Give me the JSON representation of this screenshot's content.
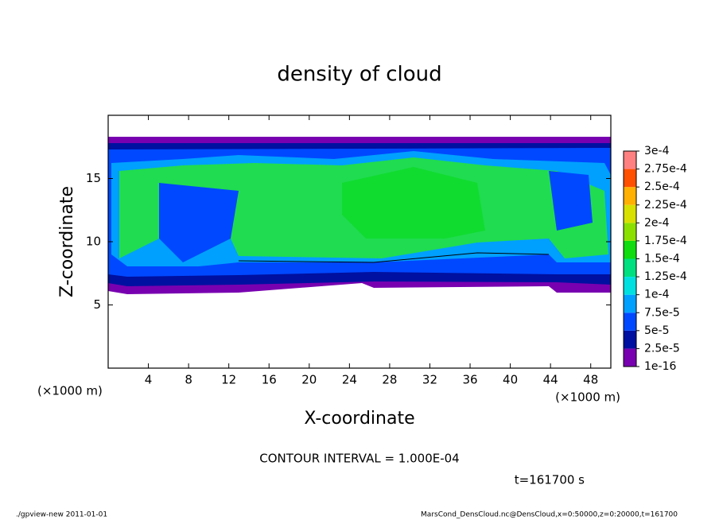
{
  "chart_data": {
    "type": "contour",
    "title": "density of cloud",
    "x_label": "X-coordinate",
    "y_label": "Z-coordinate",
    "x_unit": "(×1000 m)",
    "y_unit": "(×1000 m)",
    "xlim": [
      0,
      50
    ],
    "xticks": [
      4,
      8,
      12,
      16,
      20,
      24,
      28,
      32,
      36,
      40,
      44,
      48
    ],
    "ylim": [
      0,
      20
    ],
    "yticks": [
      5,
      10,
      15
    ],
    "colorbar_levels": [
      1e-16,
      {
        "value": 2.5e-05,
        "label": "2.5e-5"
      },
      {
        "value": 5e-05,
        "label": "5e-5"
      },
      {
        "value": 7.5e-05,
        "label": "7.5e-5"
      },
      {
        "value": 0.0001,
        "label": "1e-4"
      },
      {
        "value": 0.000125,
        "label": "1.25e-4"
      },
      {
        "value": 0.00015,
        "label": "1.5e-4"
      },
      {
        "value": 0.000175,
        "label": "1.75e-4"
      },
      {
        "value": 0.0002,
        "label": "2e-4"
      },
      {
        "value": 0.000225,
        "label": "2.25e-4"
      },
      {
        "value": 0.00025,
        "label": "2.5e-4"
      },
      {
        "value": 0.000275,
        "label": "2.75e-4"
      },
      {
        "value": 0.0003,
        "label": "3e-4"
      }
    ],
    "colorbar_colors": [
      "#7800b0",
      "#0010a0",
      "#0048ff",
      "#00a0ff",
      "#00e0e0",
      "#00e080",
      "#10dc10",
      "#8ce000",
      "#d8e000",
      "#ffb000",
      "#ff5000",
      "#ff8080"
    ],
    "annotation": "CONTOUR INTERVAL = 1.000E-04",
    "time_label": "t=161700 s",
    "footer_left": "./gpview-new  2011-01-01",
    "footer_right": "MarsCond_DensCloud.nc@DensCloud,x=0:50000,z=0:20000,t=161700"
  }
}
